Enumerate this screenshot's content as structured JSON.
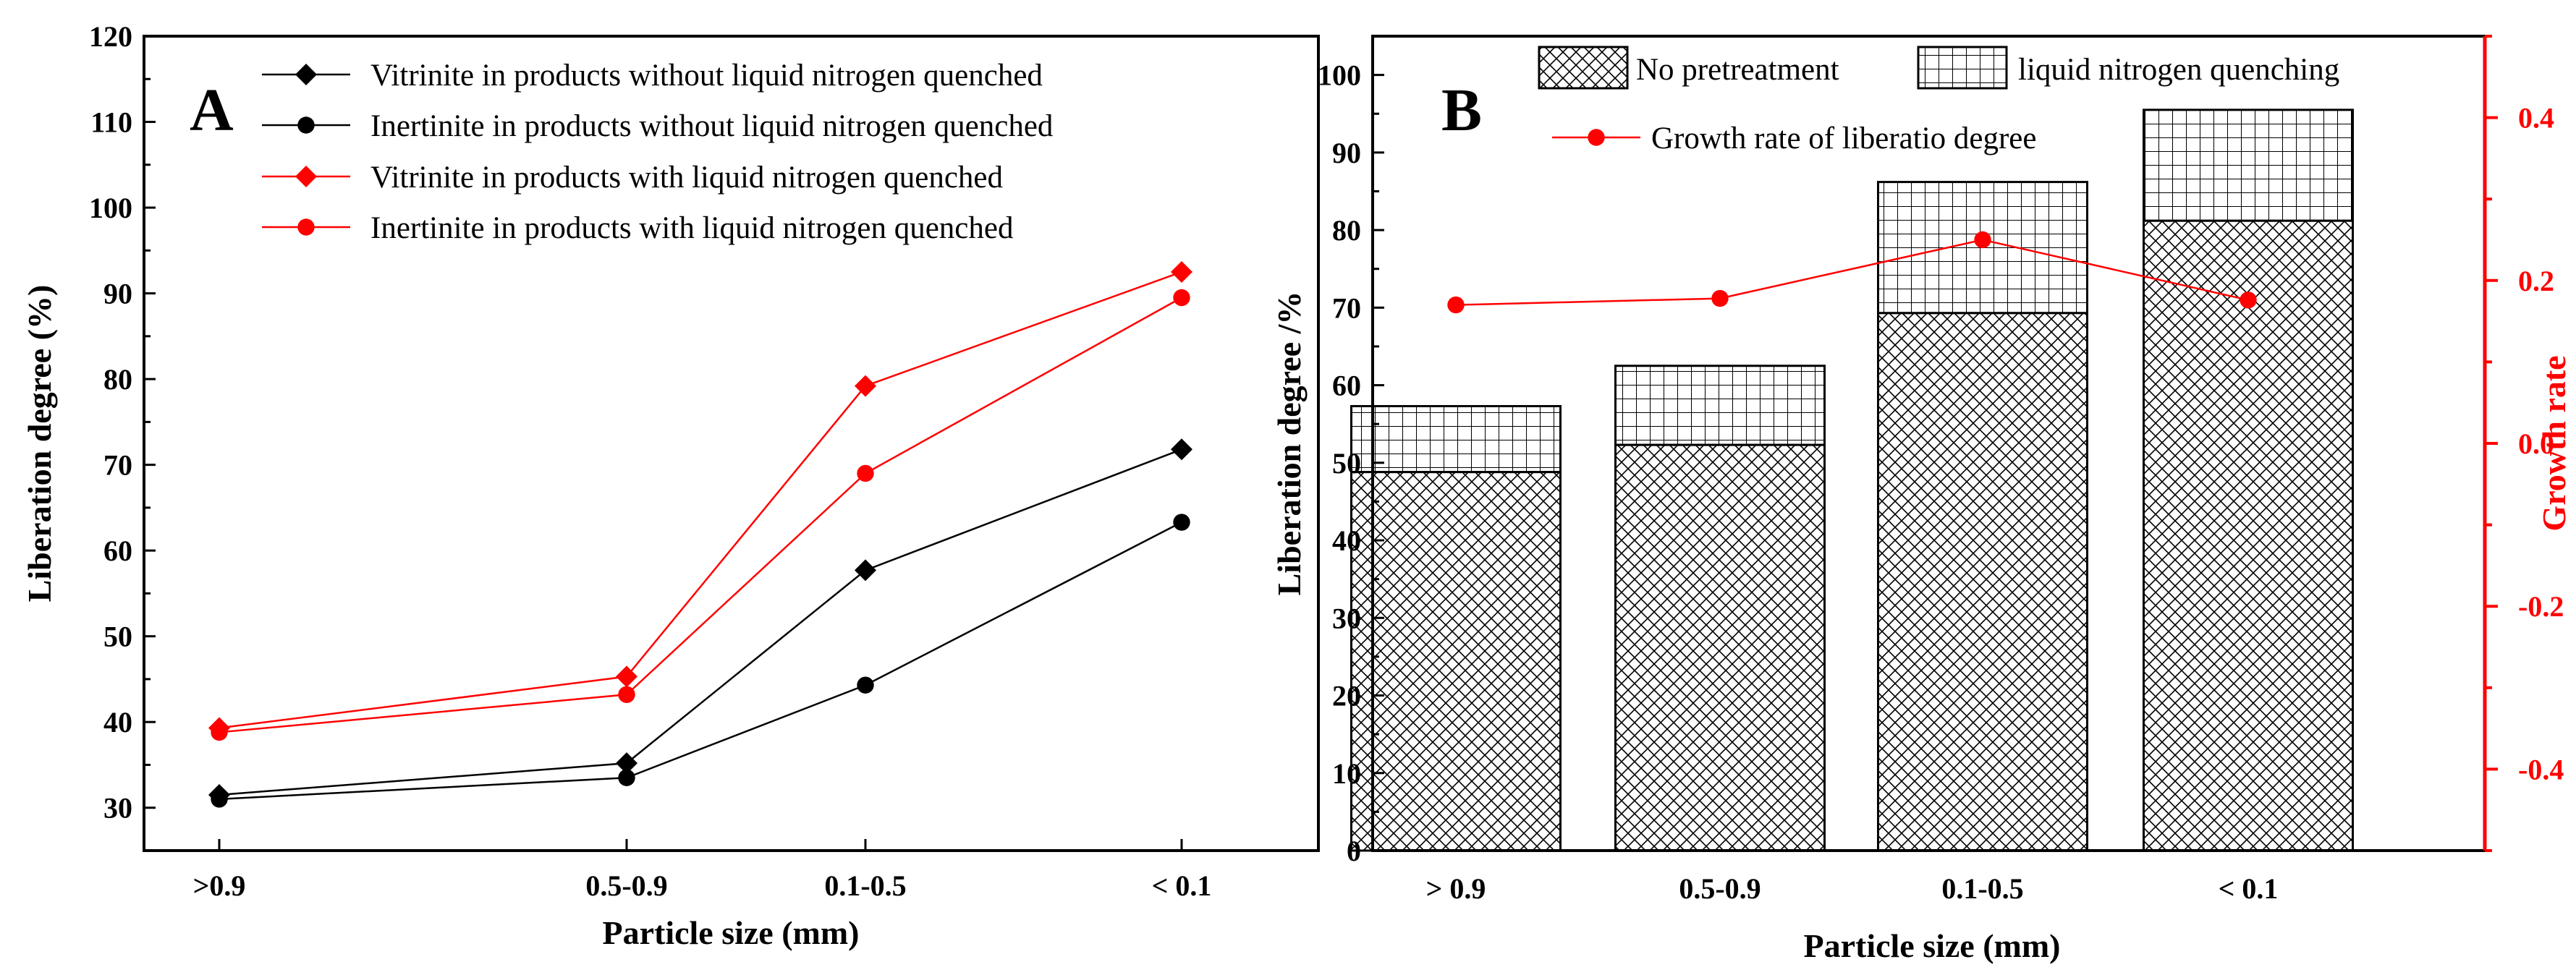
{
  "colors": {
    "black_series": "#000000",
    "red_series": "#ff0000",
    "axis": "#000000",
    "right_axis": "#ff0000"
  },
  "chart_data": [
    {
      "panel_label": "A",
      "type": "line",
      "title": "",
      "xlabel": "Particle size (mm)",
      "ylabel": "Liberation degree (%)",
      "categories": [
        ">0.9",
        "0.5-0.9",
        "0.1-0.5",
        "< 0.1"
      ],
      "ylim": [
        25,
        120
      ],
      "yticks": [
        30,
        40,
        50,
        60,
        70,
        80,
        90,
        100,
        110,
        120
      ],
      "legend_position": "top-right",
      "series": [
        {
          "name": "Vitrinite in products without liquid nitrogen quenched",
          "color": "#000000",
          "marker": "diamond",
          "values": [
            31.5,
            35.2,
            57.7,
            71.8
          ]
        },
        {
          "name": "Inertinite in products without liquid nitrogen quenched",
          "color": "#000000",
          "marker": "circle",
          "values": [
            31.0,
            33.5,
            44.3,
            63.3
          ]
        },
        {
          "name": "Vitrinite in products with liquid nitrogen quenched",
          "color": "#ff0000",
          "marker": "diamond",
          "values": [
            39.3,
            45.3,
            79.2,
            92.5
          ]
        },
        {
          "name": "Inertinite in products with liquid nitrogen quenched",
          "color": "#ff0000",
          "marker": "circle",
          "values": [
            38.8,
            43.2,
            69.0,
            89.5
          ]
        }
      ]
    },
    {
      "panel_label": "B",
      "type": "bar",
      "title": "",
      "xlabel": "Particle size (mm)",
      "ylabel": "Liberation degree /%",
      "y2label": "Growth rate",
      "categories": [
        "> 0.9",
        "0.5-0.9",
        "0.1-0.5",
        "< 0.1"
      ],
      "ylim": [
        0,
        105
      ],
      "yticks": [
        0,
        10,
        20,
        30,
        40,
        50,
        60,
        70,
        80,
        90,
        100
      ],
      "y2lim": [
        -0.5,
        0.5
      ],
      "y2ticks": [
        -0.4,
        -0.2,
        0.0,
        0.2,
        0.4
      ],
      "y2tick_labels": [
        "-0.4",
        "-0.2",
        "0.0",
        "0.2",
        "0.4"
      ],
      "legend_position": "top",
      "series": [
        {
          "name": "No pretreatment",
          "pattern": "cross-hatch",
          "values": [
            48.8,
            52.3,
            69.3,
            81.2
          ]
        },
        {
          "name": "liquid nitrogen quenching",
          "pattern": "grid",
          "values": [
            57.3,
            62.5,
            86.2,
            95.5
          ]
        },
        {
          "name": "Growth rate of liberatio degree",
          "axis": "right",
          "color": "#ff0000",
          "marker": "circle",
          "values": [
            0.17,
            0.178,
            0.25,
            0.176
          ]
        }
      ]
    }
  ]
}
